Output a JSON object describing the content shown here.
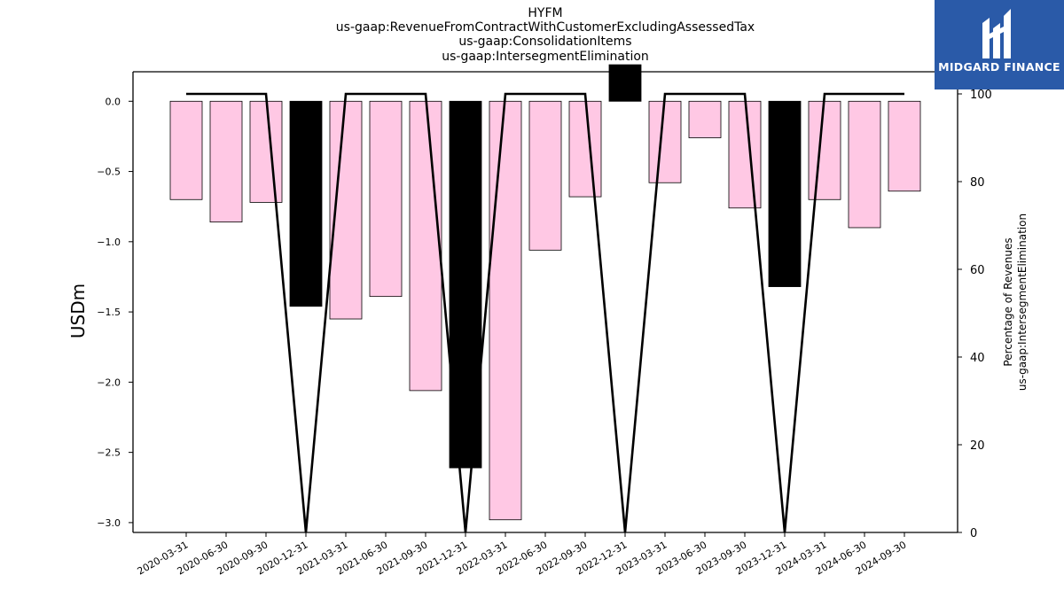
{
  "chart_data": {
    "type": "bar",
    "title": [
      "HYFM",
      "us-gaap:RevenueFromContractWithCustomerExcludingAssessedTax",
      "us-gaap:ConsolidationItems",
      "us-gaap:IntersegmentElimination"
    ],
    "ylabel": "USDm",
    "y2label": [
      "Percentage of Revenues",
      "us-gaap:IntersegmentElimination"
    ],
    "categories": [
      "2020-03-31",
      "2020-06-30",
      "2020-09-30",
      "2020-12-31",
      "2021-03-31",
      "2021-06-30",
      "2021-09-30",
      "2021-12-31",
      "2022-03-31",
      "2022-06-30",
      "2022-09-30",
      "2022-12-31",
      "2023-03-31",
      "2023-06-30",
      "2023-09-30",
      "2023-12-31",
      "2024-03-31",
      "2024-06-30",
      "2024-09-30"
    ],
    "bar_values": [
      -0.7,
      -0.86,
      -0.72,
      -1.46,
      -1.55,
      -1.39,
      -2.06,
      -2.61,
      -2.98,
      -1.06,
      -0.68,
      0.26,
      -0.58,
      -0.26,
      -0.76,
      -1.32,
      -0.7,
      -0.9,
      -0.64
    ],
    "bar_colors": [
      "#ffc8e4",
      "#ffc8e4",
      "#ffc8e4",
      "#000000",
      "#ffc8e4",
      "#ffc8e4",
      "#ffc8e4",
      "#000000",
      "#ffc8e4",
      "#ffc8e4",
      "#ffc8e4",
      "#000000",
      "#ffc8e4",
      "#ffc8e4",
      "#ffc8e4",
      "#000000",
      "#ffc8e4",
      "#ffc8e4",
      "#ffc8e4"
    ],
    "line_values": [
      100,
      100,
      100,
      0,
      100,
      100,
      100,
      0,
      100,
      100,
      100,
      0,
      100,
      100,
      100,
      0,
      100,
      100,
      100
    ],
    "ylim": [
      -3.07,
      0.21
    ],
    "y2lim": [
      0,
      100
    ],
    "yticks": [
      0.0,
      -0.5,
      -1.0,
      -1.5,
      -2.0,
      -2.5,
      -3.0
    ],
    "yticklabels": [
      "0.0",
      "−0.5",
      "−1.0",
      "−1.5",
      "−2.0",
      "−2.5",
      "−3.0"
    ],
    "y2ticks": [
      0,
      20,
      40,
      60,
      80,
      100
    ],
    "grid": false
  },
  "logo": {
    "text": "MIDGARD FINANCE"
  }
}
